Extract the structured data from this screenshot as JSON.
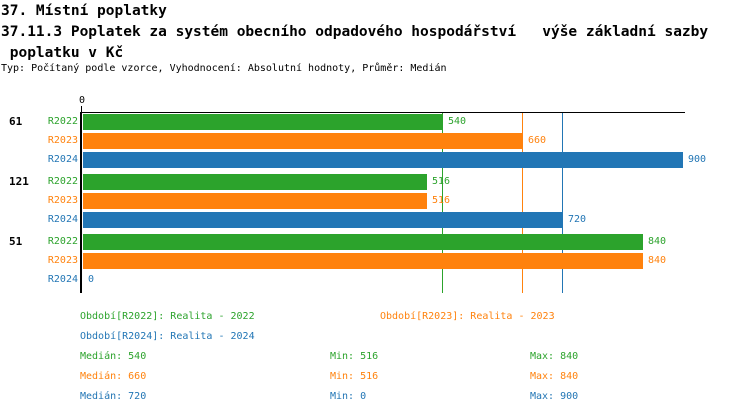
{
  "header": {
    "title": "37. Místní poplatky",
    "subtitle_line1": "37.11.3 Poplatek za systém obecního odpadového hospodářství   výše základní sazby",
    "subtitle_line2": " poplatku v Kč",
    "meta": "Typ: Počítaný podle vzorce, Vyhodnocení: Absolutní hodnoty, Průměr: Medián"
  },
  "axis": {
    "zero_label": "0"
  },
  "chart_data": {
    "type": "bar",
    "orientation": "horizontal",
    "title": "37.11.3 Poplatek za systém obecního odpadového hospodářství - výše základní sazby poplatku v Kč",
    "categories": [
      "61",
      "121",
      "51"
    ],
    "series": [
      {
        "name": "R2022",
        "color": "#2CA32C",
        "values": [
          540,
          516,
          840
        ],
        "median": 540,
        "min": 516,
        "max": 840
      },
      {
        "name": "R2023",
        "color": "#FF820D",
        "values": [
          660,
          516,
          840
        ],
        "median": 660,
        "min": 516,
        "max": 840
      },
      {
        "name": "R2024",
        "color": "#2276B5",
        "values": [
          900,
          720,
          0
        ],
        "median": 720,
        "min": 0,
        "max": 900
      }
    ],
    "xlim": [
      0,
      900
    ],
    "grid": false,
    "median_gridlines": [
      540,
      660,
      720
    ],
    "value_labels_shown": true,
    "legend_position": "bottom"
  },
  "legend": {
    "r2022": "Období[R2022]: Realita - 2022",
    "r2023": "Období[R2023]: Realita - 2023",
    "r2024": "Období[R2024]: Realita - 2024"
  },
  "stats": {
    "rows": [
      {
        "median": "Medián: 540",
        "min": "Min: 516",
        "max": "Max: 840"
      },
      {
        "median": "Medián: 660",
        "min": "Min: 516",
        "max": "Max: 840"
      },
      {
        "median": "Medián: 720",
        "min": "Min: 0",
        "max": "Max: 900"
      }
    ]
  }
}
